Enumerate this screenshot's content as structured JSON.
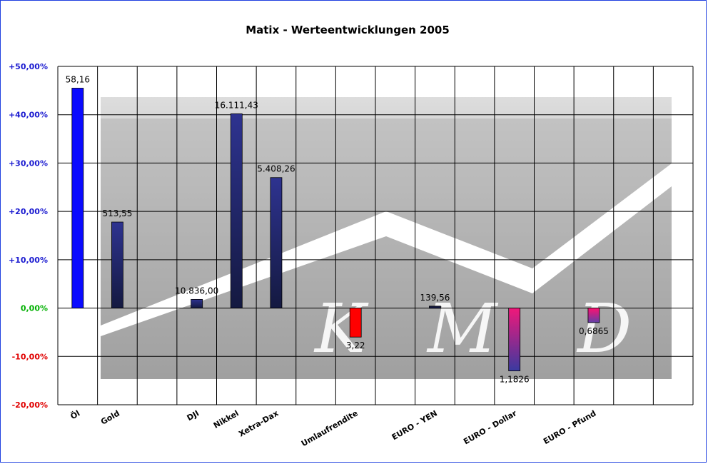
{
  "chart_data": {
    "type": "bar",
    "title": "Matix - Werteentwicklungen 2005",
    "xlabel": "",
    "ylabel": "",
    "ylim": [
      -20,
      50
    ],
    "yticks": [
      {
        "value": 50,
        "label": "+50,00%"
      },
      {
        "value": 40,
        "label": "+40,00%"
      },
      {
        "value": 30,
        "label": "+30,00%"
      },
      {
        "value": 20,
        "label": "+20,00%"
      },
      {
        "value": 10,
        "label": "+10,00%"
      },
      {
        "value": 0,
        "label": "0,00%"
      },
      {
        "value": -10,
        "label": "-10,00%"
      },
      {
        "value": -20,
        "label": "-20,00%"
      }
    ],
    "categories": [
      "Öl",
      "Gold",
      "",
      "DJI",
      "Nikkel",
      "Xetra-Dax",
      "",
      "Umlaufrendite",
      "",
      "EURO - YEN",
      "",
      "EURO - Dollar",
      "",
      "EURO - Pfund",
      "",
      ""
    ],
    "values": [
      45.5,
      17.8,
      null,
      1.8,
      40.2,
      27.0,
      null,
      -6.0,
      null,
      0.4,
      null,
      -13.0,
      null,
      -3.0,
      null,
      null
    ],
    "data_labels": [
      "58,16",
      "513,55",
      "",
      "10.836,00",
      "16.111,43",
      "5.408,26",
      "",
      "3,22",
      "",
      "139,56",
      "",
      "1,1826",
      "",
      "0,6865",
      "",
      ""
    ],
    "grid": true,
    "legend": "none"
  },
  "colors": {
    "oil": "#0a0aff",
    "navy": "#2b2f8a",
    "navy_dark": "#151a45",
    "red": "#ff0000",
    "magenta": "#e8207a",
    "pos_tick": "#1a1ad0",
    "zero_tick": "#00b000",
    "neg_tick": "#e00000",
    "watermark": "#9c9c9c"
  },
  "watermark_letters": [
    "K",
    "M",
    "D"
  ]
}
